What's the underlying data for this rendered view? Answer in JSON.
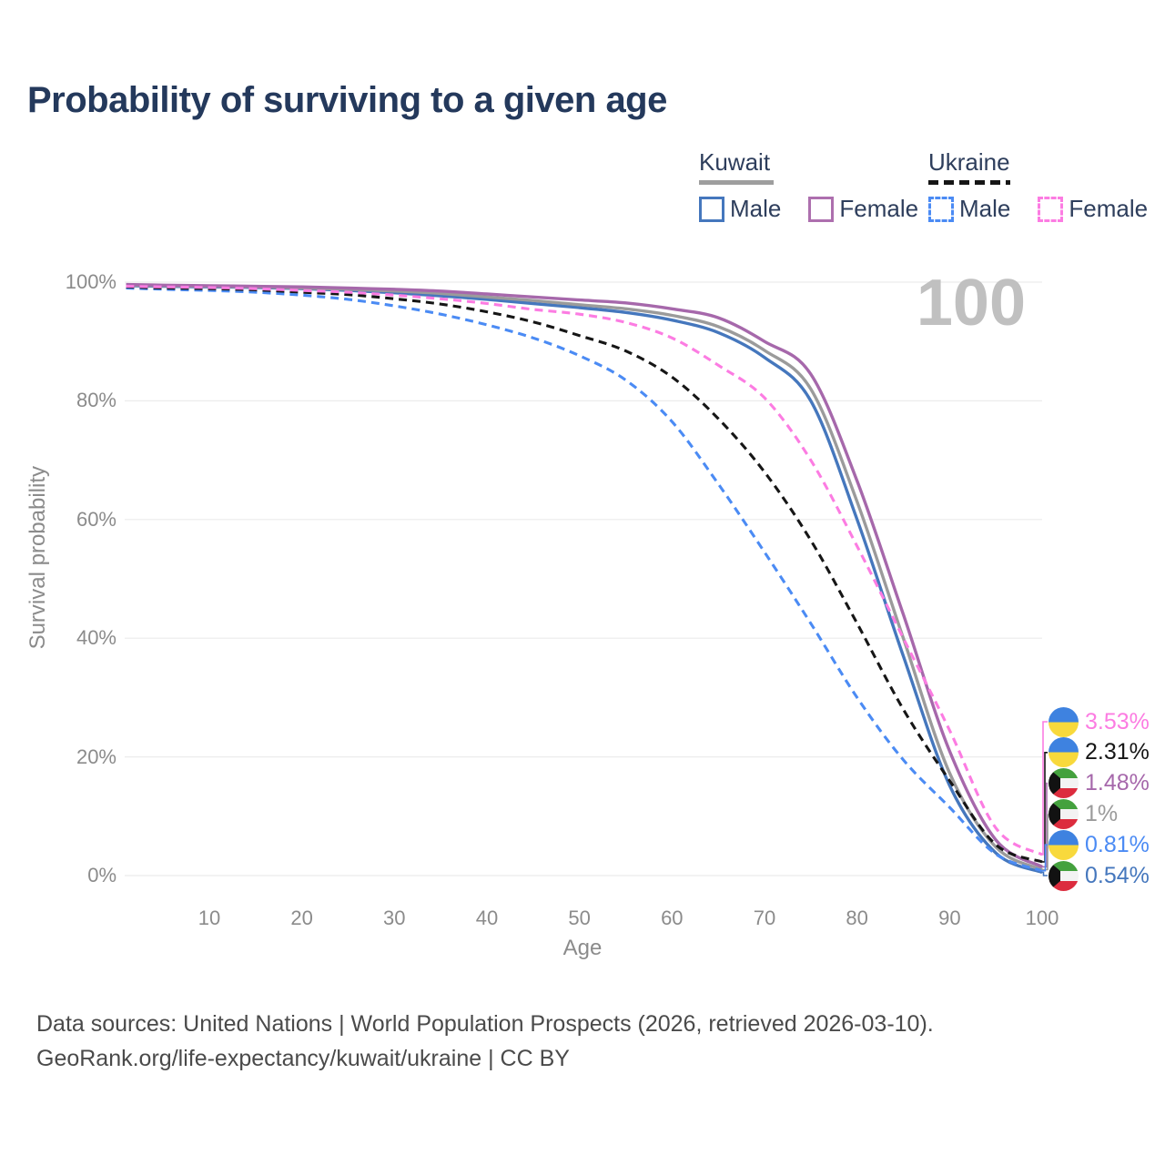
{
  "title": "Probability of surviving to a given age",
  "legend": {
    "kuwait": {
      "label": "Kuwait",
      "male": "Male",
      "female": "Female"
    },
    "ukraine": {
      "label": "Ukraine",
      "male": "Male",
      "female": "Female"
    }
  },
  "colors": {
    "kuwait_male": "#4577bd",
    "kuwait_both": "#9b9b9b",
    "kuwait_female": "#a668ab",
    "ukraine_male": "#4b8bf4",
    "ukraine_both": "#161616",
    "ukraine_female": "#fc7ce2",
    "grid": "#ececec",
    "title_text": "#24395c",
    "axis_text": "#8b8b8b",
    "watermark": "#c0c0c0"
  },
  "chart_data": {
    "type": "line",
    "title": "Probability of surviving to a given age",
    "xlabel": "Age",
    "ylabel": "Survival probability",
    "xlim": [
      0,
      100
    ],
    "ylim": [
      0,
      100
    ],
    "x_ticks": [
      10,
      20,
      30,
      40,
      50,
      60,
      70,
      80,
      90,
      100
    ],
    "y_ticks": [
      0,
      20,
      40,
      60,
      80,
      100
    ],
    "y_tick_suffix": "%",
    "grid": "horizontal",
    "legend_position": "top-right",
    "annotation": "100",
    "ages": [
      1,
      5,
      10,
      15,
      20,
      25,
      30,
      35,
      40,
      45,
      50,
      55,
      60,
      65,
      70,
      75,
      80,
      85,
      90,
      95,
      100
    ],
    "series": [
      {
        "id": "kuwait-male",
        "name": "Kuwait Male",
        "country": "Kuwait",
        "sex": "Male",
        "color": "#4577bd",
        "dashed": false,
        "values": [
          99.4,
          99.3,
          99.2,
          99.1,
          98.9,
          98.6,
          98.2,
          97.7,
          97.1,
          96.4,
          95.7,
          94.9,
          93.6,
          91.5,
          87.3,
          80.0,
          60.0,
          37.0,
          15.2,
          3.8,
          0.54
        ]
      },
      {
        "id": "kuwait-both",
        "name": "Kuwait (both sexes)",
        "country": "Kuwait",
        "sex": "Both",
        "color": "#9b9b9b",
        "dashed": false,
        "values": [
          99.5,
          99.4,
          99.3,
          99.2,
          99.0,
          98.8,
          98.5,
          98.1,
          97.5,
          96.9,
          96.2,
          95.5,
          94.4,
          92.5,
          88.5,
          82.0,
          63.0,
          40.0,
          17.3,
          4.8,
          1.0
        ]
      },
      {
        "id": "kuwait-female",
        "name": "Kuwait Female",
        "country": "Kuwait",
        "sex": "Female",
        "color": "#a668ab",
        "dashed": false,
        "values": [
          99.6,
          99.5,
          99.4,
          99.3,
          99.2,
          99.0,
          98.8,
          98.5,
          98.0,
          97.5,
          97.0,
          96.5,
          95.5,
          94.0,
          90.0,
          84.5,
          66.5,
          44.0,
          21.0,
          6.0,
          1.48
        ]
      },
      {
        "id": "ukraine-male",
        "name": "Ukraine Male",
        "country": "Ukraine",
        "sex": "Male",
        "color": "#4b8bf4",
        "dashed": true,
        "values": [
          99.0,
          98.8,
          98.6,
          98.3,
          97.8,
          97.1,
          96.0,
          94.6,
          92.8,
          90.6,
          87.6,
          83.5,
          76.5,
          66.0,
          54.5,
          42.5,
          30.0,
          19.5,
          11.5,
          3.6,
          0.81
        ]
      },
      {
        "id": "ukraine-both",
        "name": "Ukraine (both sexes)",
        "country": "Ukraine",
        "sex": "Both",
        "color": "#161616",
        "dashed": true,
        "values": [
          99.2,
          99.0,
          98.9,
          98.7,
          98.3,
          97.9,
          97.2,
          96.3,
          95.0,
          93.3,
          91.0,
          88.4,
          84.0,
          77.0,
          68.0,
          56.5,
          42.5,
          28.0,
          16.0,
          5.2,
          2.31
        ]
      },
      {
        "id": "ukraine-female",
        "name": "Ukraine Female",
        "country": "Ukraine",
        "sex": "Female",
        "color": "#fc7ce2",
        "dashed": true,
        "values": [
          99.3,
          99.2,
          99.1,
          98.9,
          98.6,
          98.3,
          97.8,
          97.2,
          96.4,
          95.4,
          94.6,
          93.2,
          90.6,
          86.0,
          80.5,
          70.0,
          55.5,
          40.0,
          24.5,
          8.0,
          3.53
        ]
      }
    ],
    "end_labels": [
      {
        "series": "ukraine-female",
        "text": "3.53%",
        "flag": "ukraine-flag-icon"
      },
      {
        "series": "ukraine-both",
        "text": "2.31%",
        "flag": "ukraine-flag-icon"
      },
      {
        "series": "kuwait-female",
        "text": "1.48%",
        "flag": "kuwait-flag-icon"
      },
      {
        "series": "kuwait-both",
        "text": "1%",
        "flag": "kuwait-flag-icon"
      },
      {
        "series": "ukraine-male",
        "text": "0.81%",
        "flag": "ukraine-flag-icon"
      },
      {
        "series": "kuwait-male",
        "text": "0.54%",
        "flag": "kuwait-flag-icon"
      }
    ]
  },
  "footer": {
    "line1": "Data sources: United Nations | World Population Prospects (2026, retrieved 2026-03-10).",
    "line2": "GeoRank.org/life-expectancy/kuwait/ukraine | CC BY"
  }
}
